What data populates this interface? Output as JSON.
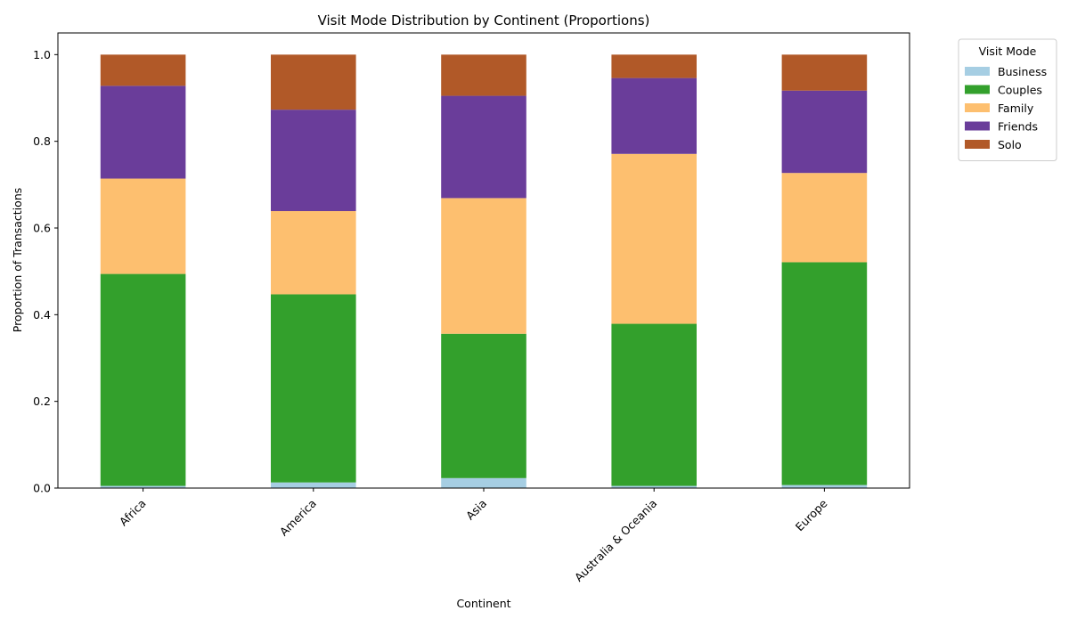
{
  "chart_data": {
    "type": "bar",
    "stacked": true,
    "title": "Visit Mode Distribution by Continent (Proportions)",
    "xlabel": "Continent",
    "ylabel": "Proportion of Transactions",
    "ylim": [
      0,
      1.05
    ],
    "yticks": [
      "0.0",
      "0.2",
      "0.4",
      "0.6",
      "0.8",
      "1.0"
    ],
    "categories": [
      "Africa",
      "America",
      "Asia",
      "Australia & Oceania",
      "Europe"
    ],
    "legend": {
      "title": "Visit Mode",
      "placement": "outside-top-right"
    },
    "grid": false,
    "series": [
      {
        "name": "Business",
        "color": "#a6cee3",
        "values": [
          0.005,
          0.013,
          0.023,
          0.005,
          0.007
        ]
      },
      {
        "name": "Couples",
        "color": "#33a02c",
        "values": [
          0.489,
          0.434,
          0.333,
          0.374,
          0.514
        ]
      },
      {
        "name": "Family",
        "color": "#fdbf6f",
        "values": [
          0.22,
          0.192,
          0.313,
          0.392,
          0.206
        ]
      },
      {
        "name": "Friends",
        "color": "#6a3d9a",
        "values": [
          0.214,
          0.234,
          0.236,
          0.175,
          0.19
        ]
      },
      {
        "name": "Solo",
        "color": "#b15928",
        "values": [
          0.072,
          0.127,
          0.095,
          0.054,
          0.083
        ]
      }
    ]
  }
}
